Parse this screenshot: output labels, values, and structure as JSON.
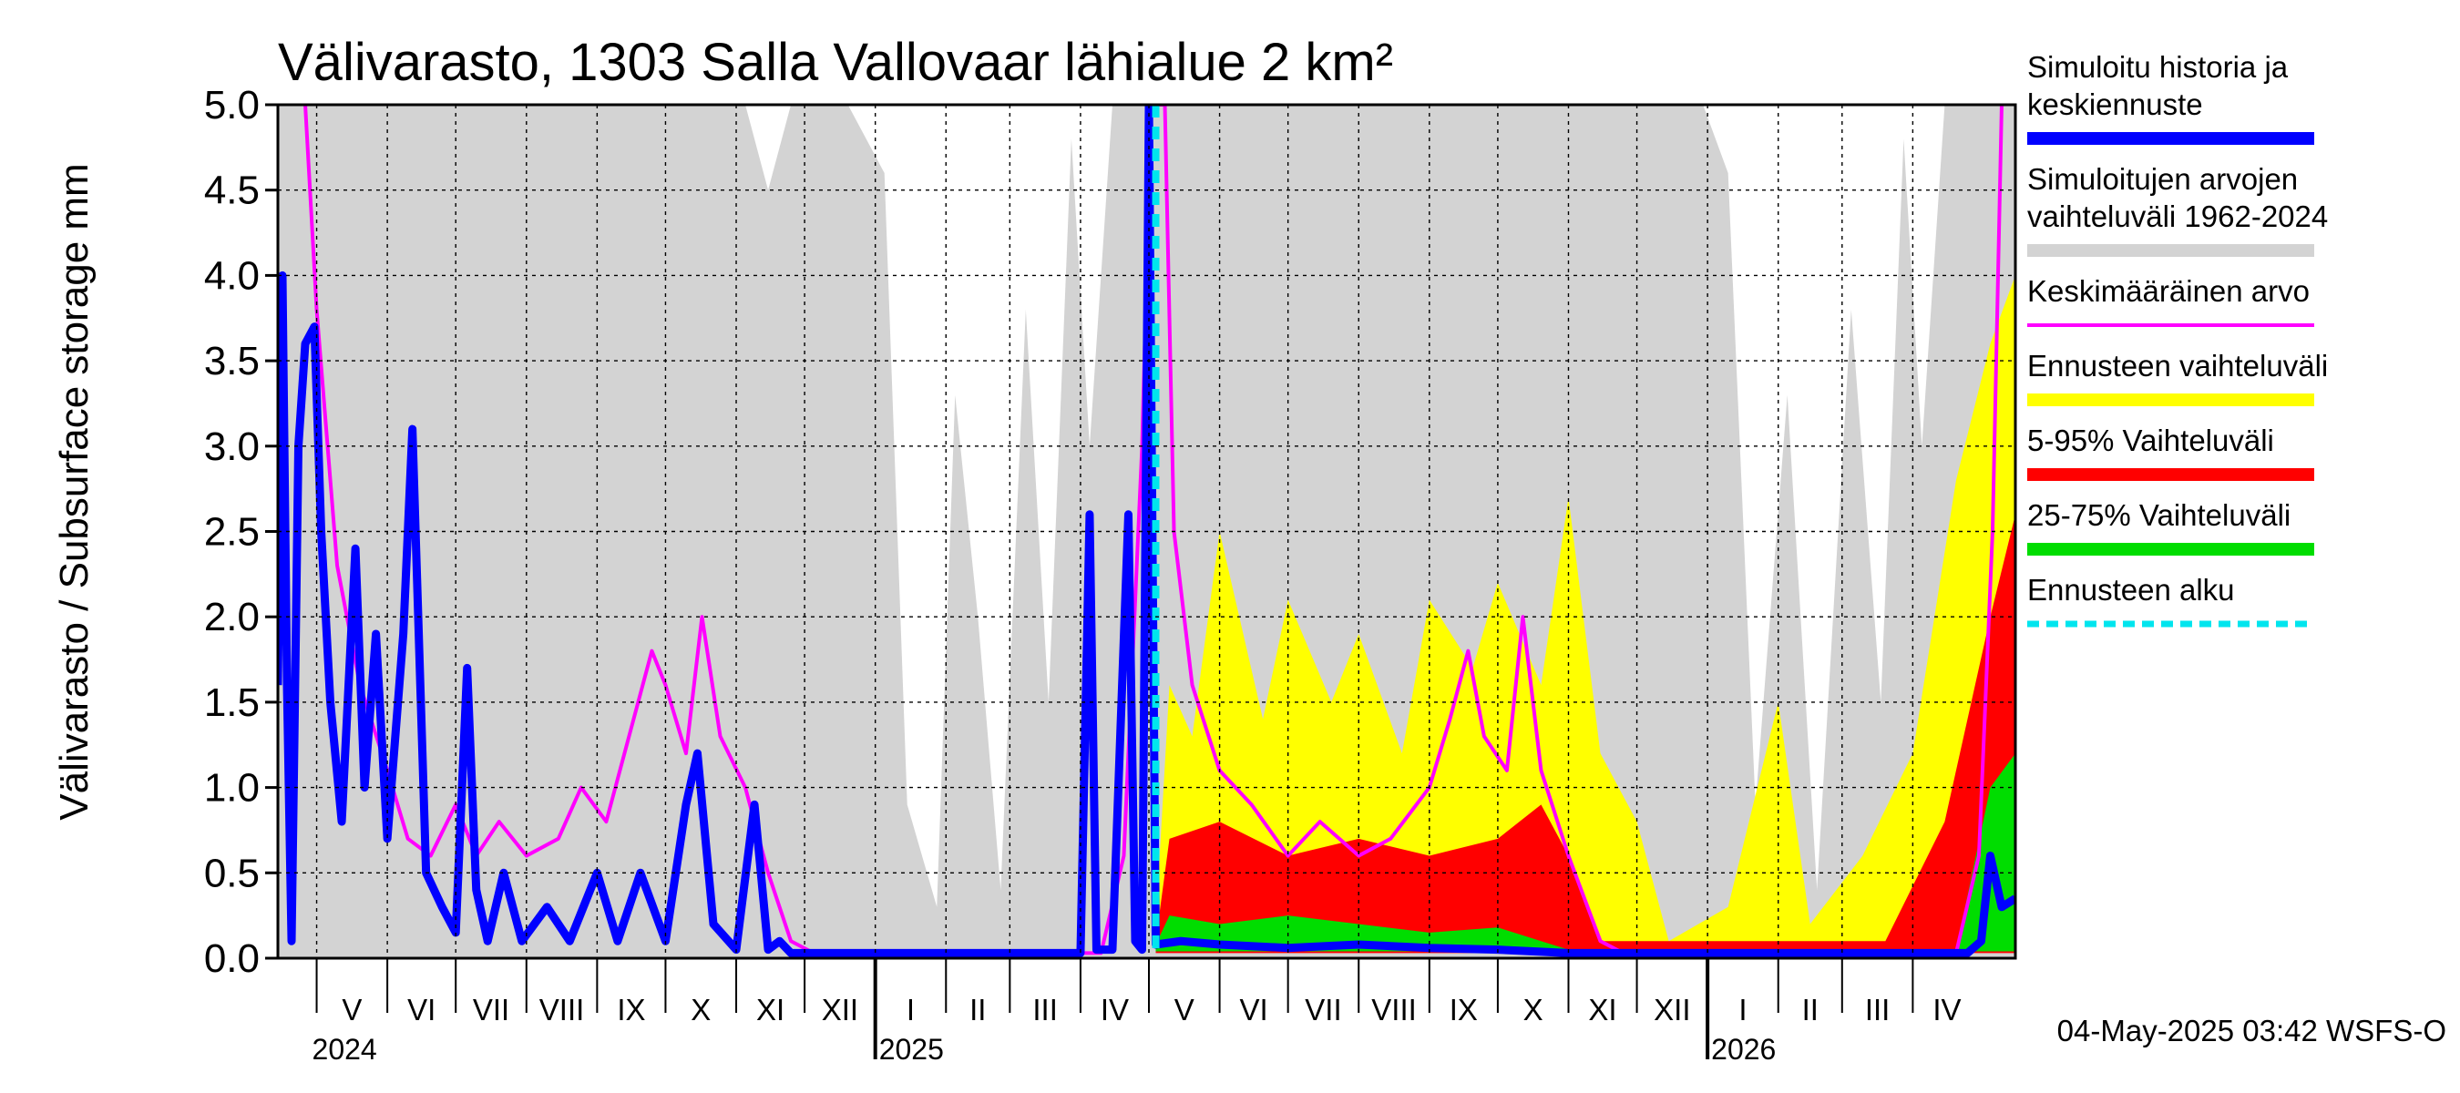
{
  "chart_data": {
    "type": "area",
    "title": "Välivarasto, 1303 Salla Vallovaar lähialue 2 km²",
    "ylabel": "Välivarasto / Subsurface storage  mm",
    "ylim": [
      0,
      5.0
    ],
    "yticks": [
      "0.0",
      "0.5",
      "1.0",
      "1.5",
      "2.0",
      "2.5",
      "3.0",
      "3.5",
      "4.0",
      "4.5",
      "5.0"
    ],
    "xlim": [
      "2024-04-14",
      "2026-05-16"
    ],
    "months": [
      {
        "label": "V",
        "start": "2024-05-01"
      },
      {
        "label": "VI",
        "start": "2024-06-01"
      },
      {
        "label": "VII",
        "start": "2024-07-01"
      },
      {
        "label": "VIII",
        "start": "2024-08-01"
      },
      {
        "label": "IX",
        "start": "2024-09-01"
      },
      {
        "label": "X",
        "start": "2024-10-01"
      },
      {
        "label": "XI",
        "start": "2024-11-01"
      },
      {
        "label": "XII",
        "start": "2024-12-01"
      },
      {
        "label": "I",
        "start": "2025-01-01"
      },
      {
        "label": "II",
        "start": "2025-02-01"
      },
      {
        "label": "III",
        "start": "2025-03-01"
      },
      {
        "label": "IV",
        "start": "2025-04-01"
      },
      {
        "label": "V",
        "start": "2025-05-01"
      },
      {
        "label": "VI",
        "start": "2025-06-01"
      },
      {
        "label": "VII",
        "start": "2025-07-01"
      },
      {
        "label": "VIII",
        "start": "2025-08-01"
      },
      {
        "label": "IX",
        "start": "2025-09-01"
      },
      {
        "label": "X",
        "start": "2025-10-01"
      },
      {
        "label": "XI",
        "start": "2025-11-01"
      },
      {
        "label": "XII",
        "start": "2025-12-01"
      },
      {
        "label": "I",
        "start": "2026-01-01"
      },
      {
        "label": "II",
        "start": "2026-02-01"
      },
      {
        "label": "III",
        "start": "2026-03-01"
      },
      {
        "label": "IV",
        "start": "2026-04-01"
      }
    ],
    "years": [
      {
        "label": "2024",
        "start": "2024-05-01"
      },
      {
        "label": "2025",
        "start": "2025-01-01"
      },
      {
        "label": "2026",
        "start": "2026-01-01"
      }
    ],
    "forecast_start": "2025-05-04",
    "series": [
      {
        "name": "Simuloitujen arvojen vaihteluväli 1962-2024",
        "kind": "band",
        "color": "#d3d3d3",
        "upper": [
          [
            "2024-04-14",
            5.0
          ],
          [
            "2024-11-05",
            5.0
          ],
          [
            "2024-11-15",
            4.5
          ],
          [
            "2024-11-25",
            5.0
          ],
          [
            "2024-12-20",
            5.0
          ],
          [
            "2025-01-05",
            4.6
          ],
          [
            "2025-01-15",
            0.9
          ],
          [
            "2025-01-28",
            0.3
          ],
          [
            "2025-02-05",
            3.3
          ],
          [
            "2025-02-15",
            2.0
          ],
          [
            "2025-02-25",
            0.4
          ],
          [
            "2025-03-08",
            3.8
          ],
          [
            "2025-03-18",
            1.5
          ],
          [
            "2025-03-28",
            4.8
          ],
          [
            "2025-04-05",
            3.0
          ],
          [
            "2025-04-15",
            5.0
          ],
          [
            "2025-12-30",
            5.0
          ],
          [
            "2026-01-10",
            4.6
          ],
          [
            "2026-01-22",
            0.9
          ],
          [
            "2026-02-05",
            3.3
          ],
          [
            "2026-02-18",
            0.4
          ],
          [
            "2026-03-05",
            3.8
          ],
          [
            "2026-03-18",
            1.5
          ],
          [
            "2026-03-28",
            4.8
          ],
          [
            "2026-04-05",
            3.0
          ],
          [
            "2026-04-15",
            5.0
          ],
          [
            "2026-05-16",
            5.0
          ]
        ],
        "lower": [
          [
            "2024-04-14",
            0.0
          ],
          [
            "2026-05-16",
            0.0
          ]
        ]
      },
      {
        "name": "Ennusteen vaihteluväli",
        "kind": "band",
        "color": "#ffff00",
        "upper": [
          [
            "2025-05-04",
            0.2
          ],
          [
            "2025-05-10",
            1.6
          ],
          [
            "2025-05-20",
            1.3
          ],
          [
            "2025-06-01",
            2.5
          ],
          [
            "2025-06-20",
            1.4
          ],
          [
            "2025-07-01",
            2.1
          ],
          [
            "2025-07-20",
            1.5
          ],
          [
            "2025-08-01",
            1.9
          ],
          [
            "2025-08-20",
            1.2
          ],
          [
            "2025-09-01",
            2.1
          ],
          [
            "2025-09-20",
            1.7
          ],
          [
            "2025-10-01",
            2.2
          ],
          [
            "2025-10-20",
            1.6
          ],
          [
            "2025-11-01",
            2.7
          ],
          [
            "2025-11-15",
            1.2
          ],
          [
            "2025-12-01",
            0.8
          ],
          [
            "2025-12-15",
            0.1
          ],
          [
            "2026-01-10",
            0.3
          ],
          [
            "2026-02-01",
            1.5
          ],
          [
            "2026-02-15",
            0.2
          ],
          [
            "2026-03-10",
            0.6
          ],
          [
            "2026-04-01",
            1.2
          ],
          [
            "2026-04-20",
            2.8
          ],
          [
            "2026-05-05",
            3.6
          ],
          [
            "2026-05-16",
            4.0
          ]
        ],
        "lower": [
          [
            "2025-05-04",
            0.05
          ],
          [
            "2026-05-16",
            0.05
          ]
        ]
      },
      {
        "name": "5-95% Vaihteluväli",
        "kind": "band",
        "color": "#ff0000",
        "upper": [
          [
            "2025-05-04",
            0.1
          ],
          [
            "2025-05-10",
            0.7
          ],
          [
            "2025-06-01",
            0.8
          ],
          [
            "2025-07-01",
            0.6
          ],
          [
            "2025-08-01",
            0.7
          ],
          [
            "2025-09-01",
            0.6
          ],
          [
            "2025-10-01",
            0.7
          ],
          [
            "2025-10-20",
            0.9
          ],
          [
            "2025-11-01",
            0.6
          ],
          [
            "2025-11-15",
            0.1
          ],
          [
            "2026-03-20",
            0.1
          ],
          [
            "2026-04-15",
            0.8
          ],
          [
            "2026-05-05",
            2.0
          ],
          [
            "2026-05-16",
            2.6
          ]
        ],
        "lower": [
          [
            "2025-05-04",
            0.03
          ],
          [
            "2026-05-16",
            0.03
          ]
        ]
      },
      {
        "name": "25-75% Vaihteluväli",
        "kind": "band",
        "color": "#00dd00",
        "upper": [
          [
            "2025-05-04",
            0.08
          ],
          [
            "2025-05-10",
            0.25
          ],
          [
            "2025-06-01",
            0.2
          ],
          [
            "2025-07-01",
            0.25
          ],
          [
            "2025-08-01",
            0.2
          ],
          [
            "2025-09-01",
            0.15
          ],
          [
            "2025-10-01",
            0.18
          ],
          [
            "2025-10-20",
            0.1
          ],
          [
            "2025-11-01",
            0.05
          ],
          [
            "2026-04-20",
            0.05
          ],
          [
            "2026-05-05",
            1.0
          ],
          [
            "2026-05-16",
            1.2
          ]
        ],
        "lower": [
          [
            "2025-05-04",
            0.04
          ],
          [
            "2026-05-16",
            0.04
          ]
        ]
      },
      {
        "name": "Keskimääräinen arvo",
        "kind": "line",
        "color": "#ff00ff",
        "points": [
          [
            "2024-04-26",
            5.0
          ],
          [
            "2024-05-01",
            3.8
          ],
          [
            "2024-05-10",
            2.3
          ],
          [
            "2024-05-20",
            1.6
          ],
          [
            "2024-06-01",
            1.1
          ],
          [
            "2024-06-10",
            0.7
          ],
          [
            "2024-06-20",
            0.6
          ],
          [
            "2024-07-01",
            0.9
          ],
          [
            "2024-07-10",
            0.6
          ],
          [
            "2024-07-20",
            0.8
          ],
          [
            "2024-08-01",
            0.6
          ],
          [
            "2024-08-15",
            0.7
          ],
          [
            "2024-08-25",
            1.0
          ],
          [
            "2024-09-05",
            0.8
          ],
          [
            "2024-09-15",
            1.3
          ],
          [
            "2024-09-25",
            1.8
          ],
          [
            "2024-10-01",
            1.6
          ],
          [
            "2024-10-10",
            1.2
          ],
          [
            "2024-10-17",
            2.0
          ],
          [
            "2024-10-25",
            1.3
          ],
          [
            "2024-11-05",
            1.0
          ],
          [
            "2024-11-15",
            0.5
          ],
          [
            "2024-11-25",
            0.1
          ],
          [
            "2024-12-05",
            0.03
          ],
          [
            "2025-04-10",
            0.03
          ],
          [
            "2025-04-20",
            0.6
          ],
          [
            "2025-04-28",
            3.0
          ],
          [
            "2025-05-02",
            5.0
          ],
          [
            "2025-05-08",
            5.0
          ],
          [
            "2025-05-12",
            2.5
          ],
          [
            "2025-05-20",
            1.6
          ],
          [
            "2025-06-01",
            1.1
          ],
          [
            "2025-06-15",
            0.9
          ],
          [
            "2025-07-01",
            0.6
          ],
          [
            "2025-07-15",
            0.8
          ],
          [
            "2025-08-01",
            0.6
          ],
          [
            "2025-08-15",
            0.7
          ],
          [
            "2025-09-01",
            1.0
          ],
          [
            "2025-09-10",
            1.4
          ],
          [
            "2025-09-18",
            1.8
          ],
          [
            "2025-09-25",
            1.3
          ],
          [
            "2025-10-05",
            1.1
          ],
          [
            "2025-10-12",
            2.0
          ],
          [
            "2025-10-20",
            1.1
          ],
          [
            "2025-11-01",
            0.6
          ],
          [
            "2025-11-15",
            0.1
          ],
          [
            "2025-11-25",
            0.03
          ],
          [
            "2026-04-20",
            0.03
          ],
          [
            "2026-04-30",
            0.6
          ],
          [
            "2026-05-06",
            2.5
          ],
          [
            "2026-05-10",
            5.0
          ]
        ]
      },
      {
        "name": "Simuloitu historia ja keskiennuste",
        "kind": "line",
        "color": "#0000ff",
        "points": [
          [
            "2024-04-14",
            1.6
          ],
          [
            "2024-04-16",
            4.0
          ],
          [
            "2024-04-18",
            1.6
          ],
          [
            "2024-04-20",
            0.1
          ],
          [
            "2024-04-23",
            3.0
          ],
          [
            "2024-04-26",
            3.6
          ],
          [
            "2024-04-30",
            3.7
          ],
          [
            "2024-05-03",
            2.5
          ],
          [
            "2024-05-07",
            1.5
          ],
          [
            "2024-05-12",
            0.8
          ],
          [
            "2024-05-18",
            2.4
          ],
          [
            "2024-05-22",
            1.0
          ],
          [
            "2024-05-27",
            1.9
          ],
          [
            "2024-06-01",
            0.7
          ],
          [
            "2024-06-08",
            1.9
          ],
          [
            "2024-06-12",
            3.1
          ],
          [
            "2024-06-18",
            0.5
          ],
          [
            "2024-06-25",
            0.3
          ],
          [
            "2024-07-01",
            0.15
          ],
          [
            "2024-07-06",
            1.7
          ],
          [
            "2024-07-10",
            0.4
          ],
          [
            "2024-07-15",
            0.1
          ],
          [
            "2024-07-22",
            0.5
          ],
          [
            "2024-07-30",
            0.1
          ],
          [
            "2024-08-10",
            0.3
          ],
          [
            "2024-08-20",
            0.1
          ],
          [
            "2024-09-01",
            0.5
          ],
          [
            "2024-09-10",
            0.1
          ],
          [
            "2024-09-20",
            0.5
          ],
          [
            "2024-10-01",
            0.1
          ],
          [
            "2024-10-10",
            0.9
          ],
          [
            "2024-10-15",
            1.2
          ],
          [
            "2024-10-22",
            0.2
          ],
          [
            "2024-11-01",
            0.05
          ],
          [
            "2024-11-09",
            0.9
          ],
          [
            "2024-11-15",
            0.05
          ],
          [
            "2024-11-20",
            0.1
          ],
          [
            "2024-11-25",
            0.03
          ],
          [
            "2025-04-01",
            0.03
          ],
          [
            "2025-04-05",
            2.6
          ],
          [
            "2025-04-08",
            0.05
          ],
          [
            "2025-04-15",
            0.05
          ],
          [
            "2025-04-22",
            2.6
          ],
          [
            "2025-04-25",
            0.1
          ],
          [
            "2025-04-28",
            0.05
          ],
          [
            "2025-05-01",
            5.0
          ],
          [
            "2025-05-04",
            0.08
          ],
          [
            "2025-05-15",
            0.1
          ],
          [
            "2025-06-01",
            0.08
          ],
          [
            "2025-07-01",
            0.06
          ],
          [
            "2025-08-01",
            0.08
          ],
          [
            "2025-09-01",
            0.06
          ],
          [
            "2025-10-01",
            0.05
          ],
          [
            "2025-11-01",
            0.03
          ],
          [
            "2026-04-25",
            0.03
          ],
          [
            "2026-05-01",
            0.1
          ],
          [
            "2026-05-05",
            0.6
          ],
          [
            "2026-05-10",
            0.3
          ],
          [
            "2026-05-16",
            0.35
          ]
        ]
      },
      {
        "name": "Ennusteen alku",
        "kind": "vline",
        "color": "#00e5ee",
        "date": "2025-05-04"
      }
    ],
    "legend": [
      {
        "label": "Simuloitu historia ja\nkeskiennuste",
        "color": "#0000ff",
        "style": "thick"
      },
      {
        "label": "Simuloitujen arvojen\nvaihteluväli 1962-2024",
        "color": "#d3d3d3",
        "style": "thick"
      },
      {
        "label": "Keskimääräinen arvo",
        "color": "#ff00ff",
        "style": "thin"
      },
      {
        "label": "Ennusteen vaihteluväli",
        "color": "#ffff00",
        "style": "thick"
      },
      {
        "label": "5-95% Vaihteluväli",
        "color": "#ff0000",
        "style": "thick"
      },
      {
        "label": "25-75% Vaihteluväli",
        "color": "#00dd00",
        "style": "thick"
      },
      {
        "label": "Ennusteen alku",
        "color": "#00e5ee",
        "style": "dashed"
      }
    ],
    "legend_position": "right",
    "grid": true,
    "footer": "04-May-2025 03:42 WSFS-O"
  }
}
